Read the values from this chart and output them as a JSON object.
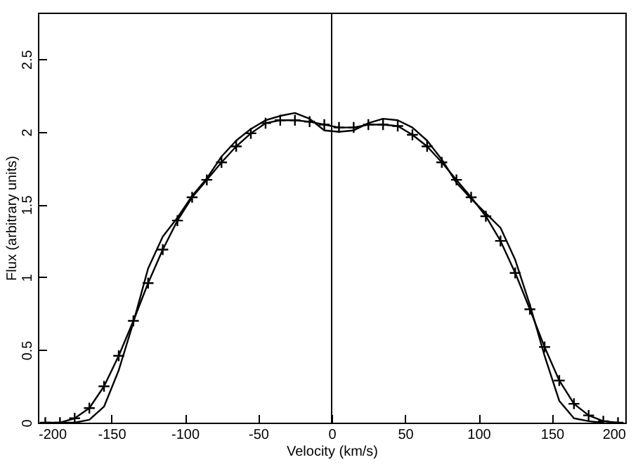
{
  "chart_data": {
    "type": "line",
    "xlabel": "Velocity (km/s)",
    "ylabel": "Flux (arbitrary units)",
    "x": [
      -195,
      -185,
      -175,
      -165,
      -155,
      -145,
      -135,
      -125,
      -115,
      -105,
      -95,
      -85,
      -75,
      -65,
      -55,
      -45,
      -35,
      -25,
      -15,
      -5,
      5,
      15,
      25,
      35,
      45,
      55,
      65,
      75,
      85,
      95,
      105,
      115,
      125,
      135,
      145,
      155,
      165,
      175,
      185,
      195
    ],
    "series": [
      {
        "color": "#000000",
        "marker": "none",
        "x": [
          -185,
          -175,
          -165,
          -155,
          -145,
          -135,
          -125,
          -115,
          -105,
          -95,
          -85,
          -75,
          -65,
          -55,
          -45,
          -35,
          -25,
          -15,
          -5,
          5,
          15,
          25,
          35,
          45,
          55,
          65,
          75,
          85,
          95,
          105,
          115,
          125,
          135,
          145,
          155,
          165,
          175,
          185
        ],
        "values": [
          0,
          0,
          0.02,
          0.11,
          0.36,
          0.69,
          1.06,
          1.28,
          1.41,
          1.56,
          1.68,
          1.83,
          1.94,
          2.02,
          2.08,
          2.11,
          2.13,
          2.09,
          2.01,
          2.0,
          2.01,
          2.06,
          2.09,
          2.08,
          2.03,
          1.94,
          1.81,
          1.65,
          1.54,
          1.44,
          1.34,
          1.12,
          0.81,
          0.46,
          0.15,
          0.03,
          0.01,
          0
        ]
      },
      {
        "color": "#000000",
        "marker": "cross",
        "values": [
          0,
          0,
          0.03,
          0.1,
          0.25,
          0.46,
          0.7,
          0.96,
          1.19,
          1.39,
          1.55,
          1.67,
          1.79,
          1.9,
          1.99,
          2.06,
          2.08,
          2.08,
          2.07,
          2.05,
          2.03,
          2.03,
          2.05,
          2.05,
          2.04,
          1.98,
          1.9,
          1.79,
          1.67,
          1.55,
          1.42,
          1.25,
          1.03,
          0.78,
          0.52,
          0.29,
          0.13,
          0.05,
          0.01,
          0
        ]
      }
    ],
    "xlim": [
      -200,
      200
    ],
    "xticks": [
      -200,
      -150,
      -100,
      -50,
      0,
      50,
      100,
      150,
      200
    ],
    "ylim": [
      0,
      2.82
    ],
    "yticks": [
      0,
      0.5,
      1,
      1.5,
      2,
      2.5
    ],
    "ref_lines": [
      {
        "axis": "x",
        "value": 0,
        "color": "#000000"
      }
    ]
  }
}
